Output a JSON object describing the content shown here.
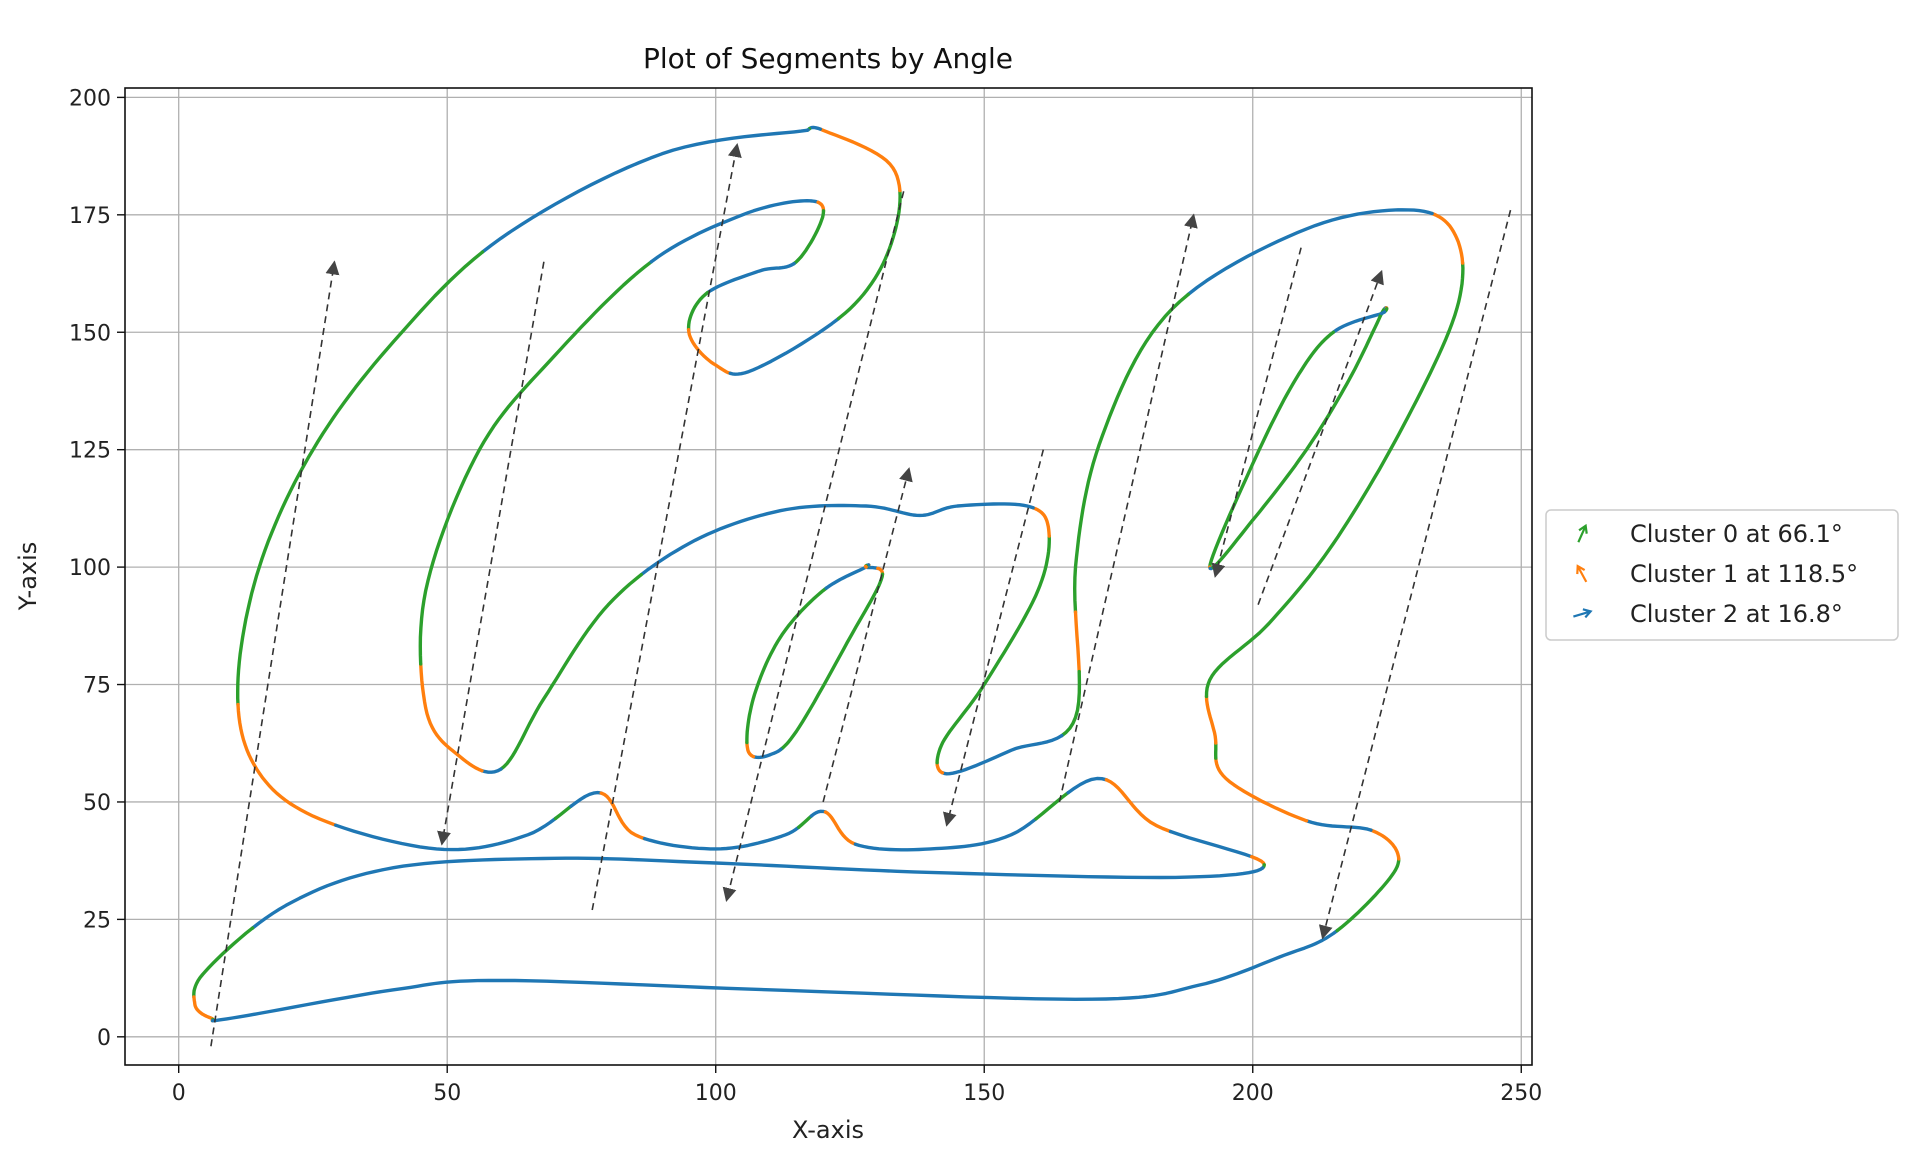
{
  "chart_data": {
    "type": "line",
    "title": "Plot of Segments by Angle",
    "xlabel": "X-axis",
    "ylabel": "Y-axis",
    "xlim": [
      -10,
      252
    ],
    "ylim": [
      -6,
      202
    ],
    "x_ticks": [
      0,
      50,
      100,
      150,
      200,
      250
    ],
    "y_ticks": [
      0,
      25,
      50,
      75,
      100,
      125,
      150,
      175,
      200
    ],
    "grid": true,
    "legend_position": "right",
    "series": [
      {
        "name": "Cluster 0 at 66.1°",
        "color": "#2ca02c",
        "angle": 66.1
      },
      {
        "name": "Cluster 1 at 118.5°",
        "color": "#ff7f0e",
        "angle": 118.5
      },
      {
        "name": "Cluster 2 at 16.8°",
        "color": "#1f77b4",
        "angle": 16.8
      }
    ],
    "contours": [
      {
        "id": "outer-C",
        "closed": false,
        "points": [
          [
            117,
            193
          ],
          [
            90,
            188
          ],
          [
            60,
            170
          ],
          [
            40,
            148
          ],
          [
            25,
            125
          ],
          [
            15,
            100
          ],
          [
            11,
            75
          ],
          [
            14,
            58
          ],
          [
            25,
            47
          ],
          [
            48,
            40
          ],
          [
            65,
            43
          ],
          [
            78,
            52
          ],
          [
            85,
            43
          ],
          [
            100,
            40
          ],
          [
            113,
            43
          ],
          [
            120,
            48
          ],
          [
            126,
            41
          ],
          [
            140,
            40
          ],
          [
            155,
            43
          ],
          [
            171,
            55
          ],
          [
            182,
            45
          ],
          [
            202,
            37
          ],
          [
            188,
            34
          ],
          [
            140,
            35
          ],
          [
            100,
            37
          ],
          [
            70,
            38
          ],
          [
            40,
            36
          ],
          [
            20,
            28
          ],
          [
            5,
            14
          ],
          [
            3,
            7
          ],
          [
            6,
            4
          ],
          [
            10,
            4
          ],
          [
            40,
            10
          ],
          [
            60,
            12
          ],
          [
            110,
            10
          ],
          [
            170,
            8
          ],
          [
            190,
            11
          ],
          [
            205,
            17
          ],
          [
            215,
            22
          ],
          [
            225,
            33
          ],
          [
            227,
            39
          ],
          [
            222,
            44
          ],
          [
            210,
            46
          ],
          [
            195,
            55
          ],
          [
            193,
            64
          ],
          [
            192,
            76
          ],
          [
            203,
            88
          ],
          [
            215,
            105
          ],
          [
            228,
            130
          ],
          [
            238,
            155
          ],
          [
            238,
            170
          ],
          [
            230,
            176
          ],
          [
            210,
            172
          ],
          [
            185,
            155
          ],
          [
            172,
            128
          ],
          [
            167,
            100
          ],
          [
            167,
            68
          ],
          [
            155,
            61
          ],
          [
            143,
            56
          ],
          [
            142,
            62
          ],
          [
            150,
            75
          ],
          [
            160,
            95
          ],
          [
            162,
            108
          ],
          [
            158,
            113
          ],
          [
            145,
            113
          ],
          [
            138,
            111
          ],
          [
            128,
            113
          ],
          [
            112,
            112
          ],
          [
            95,
            105
          ],
          [
            80,
            92
          ],
          [
            68,
            72
          ],
          [
            60,
            57
          ],
          [
            52,
            60
          ],
          [
            46,
            70
          ],
          [
            46,
            95
          ],
          [
            56,
            125
          ],
          [
            70,
            145
          ],
          [
            88,
            165
          ],
          [
            105,
            175
          ],
          [
            117,
            178
          ],
          [
            120,
            175
          ],
          [
            115,
            165
          ],
          [
            108,
            163
          ],
          [
            98,
            158
          ],
          [
            95,
            150
          ],
          [
            100,
            143
          ],
          [
            107,
            142
          ],
          [
            125,
            155
          ],
          [
            133,
            170
          ],
          [
            133,
            185
          ],
          [
            120,
            193
          ],
          [
            117,
            193
          ]
        ]
      },
      {
        "id": "inner-a",
        "closed": true,
        "points": [
          [
            128,
            100
          ],
          [
            131,
            98
          ],
          [
            125,
            85
          ],
          [
            115,
            65
          ],
          [
            110,
            60
          ],
          [
            106,
            61
          ],
          [
            107,
            72
          ],
          [
            112,
            85
          ],
          [
            120,
            95
          ],
          [
            128,
            100
          ]
        ]
      },
      {
        "id": "inner-loop",
        "closed": true,
        "points": [
          [
            224,
            154
          ],
          [
            215,
            150
          ],
          [
            208,
            140
          ],
          [
            200,
            122
          ],
          [
            192,
            100
          ],
          [
            200,
            110
          ],
          [
            210,
            125
          ],
          [
            218,
            140
          ],
          [
            224,
            154
          ]
        ]
      }
    ],
    "arrows": [
      {
        "from": [
          6,
          -2
        ],
        "to": [
          29,
          165
        ]
      },
      {
        "from": [
          68,
          165
        ],
        "to": [
          49,
          41
        ]
      },
      {
        "from": [
          77,
          27
        ],
        "to": [
          104,
          190
        ]
      },
      {
        "from": [
          135,
          180
        ],
        "to": [
          102,
          29
        ]
      },
      {
        "from": [
          120,
          50
        ],
        "to": [
          136,
          121
        ]
      },
      {
        "from": [
          161,
          125
        ],
        "to": [
          143,
          45
        ]
      },
      {
        "from": [
          164,
          50
        ],
        "to": [
          189,
          175
        ]
      },
      {
        "from": [
          209,
          168
        ],
        "to": [
          193,
          98
        ]
      },
      {
        "from": [
          201,
          92
        ],
        "to": [
          224,
          163
        ]
      },
      {
        "from": [
          248,
          176
        ],
        "to": [
          213,
          21
        ]
      }
    ]
  }
}
